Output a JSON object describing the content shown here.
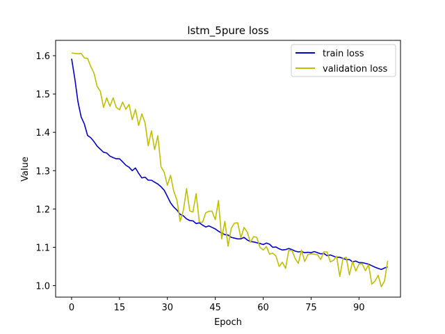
{
  "chart_data": {
    "type": "line",
    "title": "lstm_5pure loss",
    "xlabel": "Epoch",
    "ylabel": "Value",
    "xlim": [
      -5,
      103
    ],
    "ylim": [
      0.97,
      1.64
    ],
    "xticks": [
      0,
      15,
      30,
      45,
      60,
      75,
      90
    ],
    "yticks": [
      1.0,
      1.1,
      1.2,
      1.3,
      1.4,
      1.5,
      1.6
    ],
    "ytick_labels": [
      "1.0",
      "1.1",
      "1.2",
      "1.3",
      "1.4",
      "1.5",
      "1.6"
    ],
    "grid": false,
    "legend_position": "upper right",
    "series": [
      {
        "name": "train loss",
        "color": "#0000cc",
        "x": [
          0,
          1,
          2,
          3,
          4,
          5,
          6,
          7,
          8,
          9,
          10,
          11,
          12,
          13,
          14,
          15,
          16,
          17,
          18,
          19,
          20,
          21,
          22,
          23,
          24,
          25,
          26,
          27,
          28,
          29,
          30,
          31,
          32,
          33,
          34,
          35,
          36,
          37,
          38,
          39,
          40,
          41,
          42,
          43,
          44,
          45,
          46,
          47,
          48,
          49,
          50,
          51,
          52,
          53,
          54,
          55,
          56,
          57,
          58,
          59,
          60,
          61,
          62,
          63,
          64,
          65,
          66,
          67,
          68,
          69,
          70,
          71,
          72,
          73,
          74,
          75,
          76,
          77,
          78,
          79,
          80,
          81,
          82,
          83,
          84,
          85,
          86,
          87,
          88,
          89,
          90,
          91,
          92,
          93,
          94,
          95,
          96,
          97,
          98,
          99
        ],
        "values": [
          1.592,
          1.54,
          1.48,
          1.44,
          1.422,
          1.392,
          1.386,
          1.376,
          1.364,
          1.356,
          1.348,
          1.346,
          1.338,
          1.334,
          1.331,
          1.331,
          1.323,
          1.314,
          1.309,
          1.3,
          1.307,
          1.293,
          1.281,
          1.283,
          1.275,
          1.275,
          1.27,
          1.265,
          1.258,
          1.249,
          1.233,
          1.216,
          1.205,
          1.197,
          1.186,
          1.182,
          1.174,
          1.17,
          1.169,
          1.162,
          1.164,
          1.158,
          1.153,
          1.156,
          1.152,
          1.148,
          1.142,
          1.137,
          1.133,
          1.132,
          1.126,
          1.124,
          1.122,
          1.122,
          1.126,
          1.119,
          1.115,
          1.114,
          1.112,
          1.11,
          1.107,
          1.111,
          1.108,
          1.1,
          1.101,
          1.096,
          1.093,
          1.094,
          1.097,
          1.094,
          1.09,
          1.088,
          1.089,
          1.086,
          1.087,
          1.086,
          1.089,
          1.086,
          1.083,
          1.084,
          1.078,
          1.08,
          1.077,
          1.074,
          1.074,
          1.071,
          1.068,
          1.068,
          1.062,
          1.064,
          1.06,
          1.06,
          1.058,
          1.056,
          1.052,
          1.048,
          1.045,
          1.042,
          1.046,
          1.049
        ]
      },
      {
        "name": "validation loss",
        "color": "#bfbf00",
        "x": [
          0,
          1,
          2,
          3,
          4,
          5,
          6,
          7,
          8,
          9,
          10,
          11,
          12,
          13,
          14,
          15,
          16,
          17,
          18,
          19,
          20,
          21,
          22,
          23,
          24,
          25,
          26,
          27,
          28,
          29,
          30,
          31,
          32,
          33,
          34,
          35,
          36,
          37,
          38,
          39,
          40,
          41,
          42,
          43,
          44,
          45,
          46,
          47,
          48,
          49,
          50,
          51,
          52,
          53,
          54,
          55,
          56,
          57,
          58,
          59,
          60,
          61,
          62,
          63,
          64,
          65,
          66,
          67,
          68,
          69,
          70,
          71,
          72,
          73,
          74,
          75,
          76,
          77,
          78,
          79,
          80,
          81,
          82,
          83,
          84,
          85,
          86,
          87,
          88,
          89,
          90,
          91,
          92,
          93,
          94,
          95,
          96,
          97,
          98,
          99
        ],
        "values": [
          1.607,
          1.606,
          1.605,
          1.606,
          1.594,
          1.593,
          1.572,
          1.555,
          1.52,
          1.507,
          1.465,
          1.49,
          1.468,
          1.49,
          1.465,
          1.459,
          1.479,
          1.46,
          1.473,
          1.433,
          1.46,
          1.418,
          1.448,
          1.425,
          1.365,
          1.404,
          1.355,
          1.391,
          1.31,
          1.296,
          1.262,
          1.288,
          1.246,
          1.223,
          1.168,
          1.196,
          1.253,
          1.195,
          1.192,
          1.24,
          1.166,
          1.165,
          1.19,
          1.194,
          1.194,
          1.172,
          1.222,
          1.122,
          1.168,
          1.103,
          1.15,
          1.163,
          1.164,
          1.125,
          1.152,
          1.14,
          1.113,
          1.128,
          1.126,
          1.1,
          1.093,
          1.102,
          1.082,
          1.085,
          1.077,
          1.05,
          1.061,
          1.045,
          1.092,
          1.092,
          1.071,
          1.058,
          1.093,
          1.063,
          1.081,
          1.083,
          1.082,
          1.081,
          1.068,
          1.088,
          1.088,
          1.062,
          1.066,
          1.077,
          1.024,
          1.071,
          1.074,
          1.028,
          1.063,
          1.038,
          1.056,
          1.057,
          1.039,
          1.055,
          1.004,
          1.012,
          1.027,
          0.997,
          1.012,
          1.065
        ]
      }
    ]
  }
}
